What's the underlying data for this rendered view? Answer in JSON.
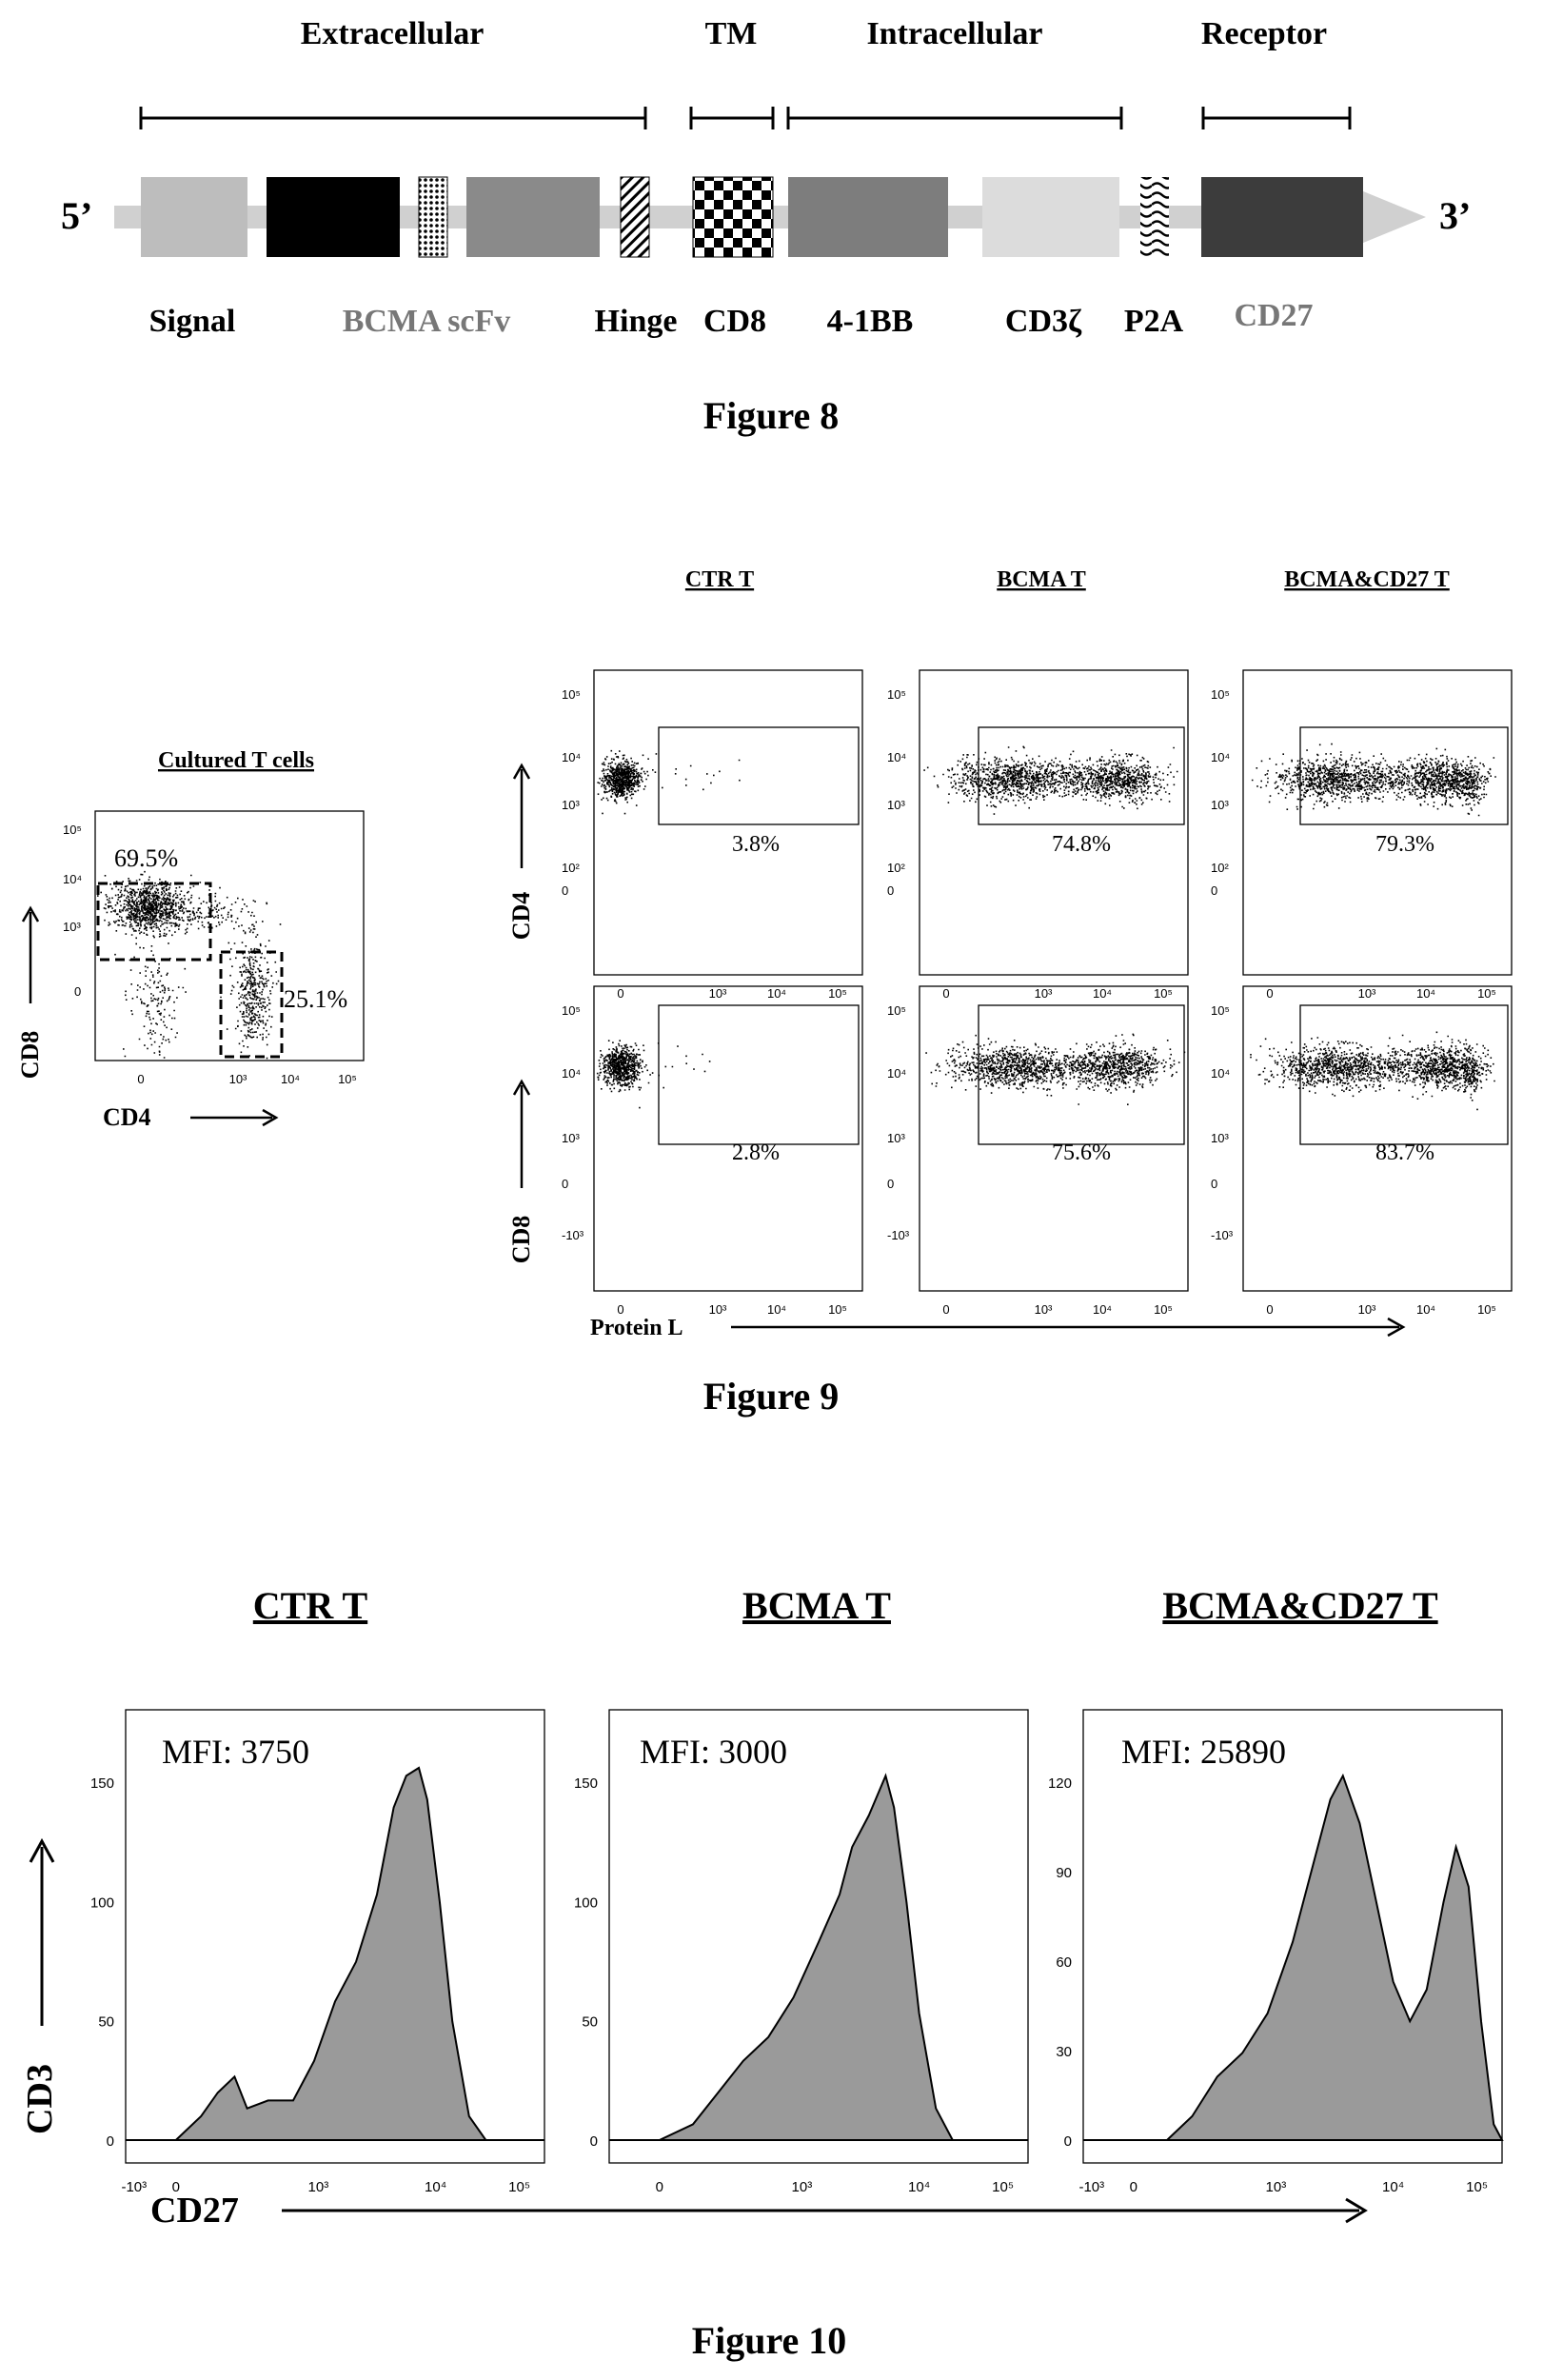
{
  "figure8": {
    "caption": "Figure 8",
    "region_labels": [
      "Extracellular",
      "TM",
      "Intracellular",
      "Receptor"
    ],
    "end_labels": {
      "five": "5’",
      "three": "3’"
    },
    "segment_labels": [
      "Signal",
      "BCMA scFv",
      "Hinge",
      "CD8",
      "4-1BB",
      "CD3ζ",
      "P2A",
      "CD27"
    ],
    "colors": {
      "signal": "#bdbdbd",
      "scfv": "#000000",
      "linker": "#ffffff",
      "hinge_block": "#8a8a8a",
      "bcma_text": "#777777",
      "bb": "#7d7d7d",
      "cd3z": "#dcdcdc",
      "cd27": "#3c3c3c",
      "backbone": "#d0d0d0"
    }
  },
  "figure9": {
    "caption": "Figure 9",
    "column_titles": [
      "CTR T",
      "BCMA T",
      "BCMA&CD27 T"
    ],
    "row_labels": [
      "CD4",
      "CD8"
    ],
    "x_axis_label": "Protein L",
    "percents": [
      [
        "3.8%",
        "74.8%",
        "79.3%"
      ],
      [
        "2.8%",
        "75.6%",
        "83.7%"
      ]
    ],
    "tick_labels": {
      "x": [
        "0",
        "10³",
        "10⁴",
        "10⁵"
      ],
      "y_cd4": [
        "10⁵",
        "10⁴",
        "10³",
        "10²",
        "0"
      ],
      "y_cd8": [
        "10⁵",
        "10⁴",
        "10³",
        "0",
        "-10³"
      ]
    },
    "side_plot": {
      "title": "Cultured T cells",
      "x_label": "CD4",
      "y_label": "CD8",
      "gate_cd8": "69.5%",
      "gate_cd4": "25.1%",
      "tick_labels": {
        "x": [
          "0",
          "10³",
          "10⁴",
          "10⁵"
        ],
        "y": [
          "10⁵",
          "10⁴",
          "10³",
          "0"
        ]
      }
    }
  },
  "figure10": {
    "caption": "Figure 10",
    "y_axis_label": "CD3",
    "x_axis_label": "CD27",
    "panels": [
      {
        "title": "CTR T",
        "mfi": "MFI: 3750",
        "y_ticks": [
          "150",
          "100",
          "50",
          "0"
        ]
      },
      {
        "title": "BCMA T",
        "mfi": "MFI: 3000",
        "y_ticks": [
          "150",
          "100",
          "50",
          "0"
        ]
      },
      {
        "title": "BCMA&CD27 T",
        "mfi": "MFI: 25890",
        "y_ticks": [
          "120",
          "90",
          "60",
          "30",
          "0"
        ]
      }
    ],
    "x_ticks": [
      "-10³",
      "0",
      "10³",
      "10⁴",
      "10⁵"
    ],
    "histogram_fill": "#9a9a9a"
  }
}
